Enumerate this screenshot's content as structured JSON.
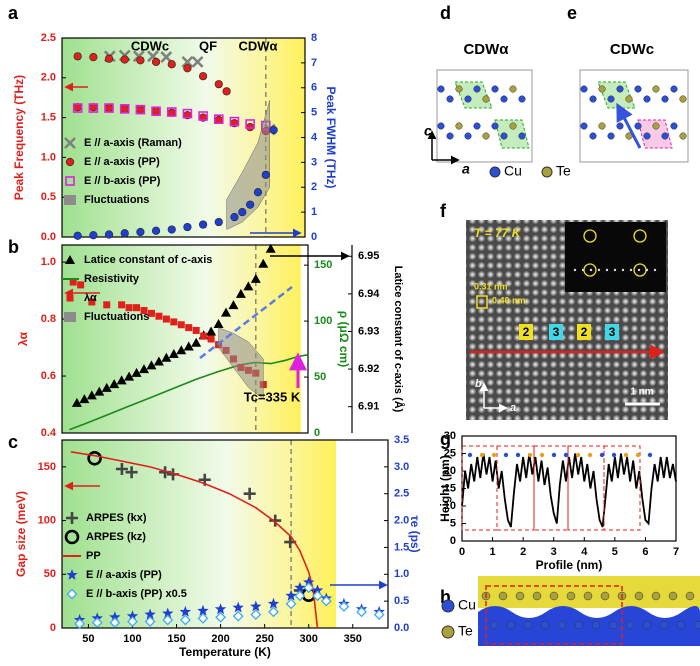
{
  "chart_data": [
    {
      "type": "scatter",
      "annotations": [
        "CDWc",
        "QF",
        "CDWα"
      ],
      "y_label": "Peak Frequency (THz)",
      "y2_label": "Peak FWHM (THz)",
      "xlim": [
        20,
        330
      ],
      "vline": 280,
      "legend": "lower left",
      "ylim": [
        0,
        2.5
      ],
      "yticks": [
        {
          "value": 0,
          "label": "0.0"
        },
        0.5,
        {
          "value": 1,
          "label": "1.0"
        },
        1.5,
        {
          "value": 2,
          "label": "2.0"
        },
        2.5
      ],
      "y2lim": [
        0,
        8
      ],
      "y2ticks": [
        0,
        1,
        2,
        3,
        4,
        5,
        6,
        7,
        8
      ],
      "y_color": "#e0201b",
      "y2_color": "#1f3fd0",
      "series": [
        {
          "name": "E // a-axis (Raman)",
          "color": "#808080",
          "style": "marker",
          "marker": "x",
          "x": [
            81,
            100,
            118,
            136,
            153,
            180,
            193,
            285
          ],
          "values": [
            2.27,
            2.28,
            2.27,
            2.27,
            2.26,
            2.2,
            2.2,
            1.35
          ]
        },
        {
          "name": "E // a-axis (PP)",
          "color": "#e0201b",
          "style": "marker",
          "marker": "circle",
          "x": [
            40,
            60,
            80,
            100,
            120,
            140,
            160,
            180,
            200,
            220,
            230,
            40,
            60,
            80,
            100,
            120,
            140,
            160,
            180,
            200,
            220,
            240,
            260,
            280
          ],
          "values": [
            2.27,
            2.26,
            2.24,
            2.23,
            2.22,
            2.2,
            2.17,
            2.12,
            2.02,
            1.92,
            1.83,
            1.63,
            1.63,
            1.62,
            1.61,
            1.6,
            1.58,
            1.56,
            1.53,
            1.5,
            1.47,
            1.43,
            1.38,
            1.33
          ]
        },
        {
          "name": "E // b-axis (PP)",
          "color": "#e020e0",
          "style": "marker",
          "marker": "square-open",
          "x": [
            40,
            60,
            80,
            100,
            120,
            140,
            160,
            180,
            200,
            220,
            240,
            260,
            280
          ],
          "values": [
            1.62,
            1.62,
            1.62,
            1.61,
            1.6,
            1.58,
            1.57,
            1.55,
            1.52,
            1.48,
            1.45,
            1.42,
            1.4
          ]
        },
        {
          "name": "Fluctuations",
          "color": "#8c8c8c",
          "style": "band",
          "axis": "y2",
          "x": [
            230,
            250,
            270,
            285
          ],
          "values": [
            1.5,
            2.6,
            3.8,
            5.5
          ],
          "lower": [
            0.3,
            0.6,
            1.2,
            2.0
          ]
        },
        {
          "color": "#1f3fd0",
          "style": "marker",
          "marker": "circle",
          "axis": "y2",
          "x": [
            40,
            60,
            80,
            100,
            120,
            140,
            160,
            180,
            200,
            220,
            240,
            250,
            260,
            270,
            280,
            290
          ],
          "values": [
            0.05,
            0.07,
            0.1,
            0.15,
            0.2,
            0.25,
            0.3,
            0.4,
            0.5,
            0.6,
            0.8,
            1.0,
            1.3,
            1.8,
            2.5,
            4.3
          ]
        }
      ]
    },
    {
      "type": "scatter",
      "annotations": [
        "Tc=335 K"
      ],
      "y_label": "λα",
      "y2_label": "ρ (μΩ cm)",
      "y3_label": "Latice constant of c-axis (Å)",
      "xlim": [
        20,
        350
      ],
      "vline": 280,
      "legend": "upper left",
      "ylim": [
        0.4,
        1.06
      ],
      "yticks": [
        0.4,
        0.6,
        0.8,
        {
          "value": 1,
          "label": "1.0"
        }
      ],
      "y2lim": [
        0,
        168
      ],
      "y2ticks": [
        0,
        50,
        100,
        150
      ],
      "y3lim": [
        6.903,
        6.953
      ],
      "y3ticks": [
        6.91,
        6.92,
        6.93,
        6.94,
        6.95
      ],
      "y_color": "#e0201b",
      "y2_color": "#1a8a1a",
      "y3_color": "#000000",
      "series": [
        {
          "name": "Latice constant of c-axis",
          "color": "#000000",
          "style": "marker",
          "marker": "triangle",
          "axis": "y3",
          "x": [
            40,
            50,
            60,
            70,
            80,
            90,
            100,
            110,
            120,
            130,
            140,
            150,
            160,
            170,
            180,
            190,
            200,
            210,
            220,
            230,
            240,
            250,
            260,
            270,
            280,
            290,
            300
          ],
          "values": [
            6.911,
            6.912,
            6.913,
            6.914,
            6.915,
            6.916,
            6.917,
            6.918,
            6.919,
            6.92,
            6.921,
            6.922,
            6.923,
            6.924,
            6.925,
            6.926,
            6.927,
            6.929,
            6.93,
            6.932,
            6.935,
            6.937,
            6.94,
            6.942,
            6.944,
            6.948,
            6.952
          ]
        },
        {
          "name": "Resistivity",
          "color": "#1a8a1a",
          "style": "line",
          "axis": "y2",
          "x": [
            30,
            50,
            80,
            110,
            140,
            170,
            200,
            230,
            260,
            280,
            300,
            320,
            335,
            350
          ],
          "values": [
            3,
            8,
            16,
            24,
            32,
            40,
            48,
            55,
            61,
            63,
            62,
            65,
            68,
            70
          ]
        },
        {
          "name": "λα",
          "color": "#e0201b",
          "style": "marker",
          "marker": "square",
          "x": [
            35,
            45,
            60,
            80,
            100,
            110,
            120,
            130,
            140,
            150,
            160,
            170,
            180,
            190,
            200,
            210,
            220,
            230,
            240,
            250,
            260,
            270,
            280,
            290
          ],
          "values": [
            0.93,
            0.92,
            0.86,
            0.85,
            0.85,
            0.84,
            0.84,
            0.83,
            0.82,
            0.81,
            0.8,
            0.79,
            0.78,
            0.77,
            0.76,
            0.74,
            0.73,
            0.71,
            0.69,
            0.66,
            0.63,
            0.62,
            0.61,
            0.57
          ]
        },
        {
          "name": "Fluctuations",
          "color": "#8c8c8c",
          "style": "band",
          "x": [
            230,
            250,
            270,
            290
          ],
          "values": [
            0.77,
            0.75,
            0.72,
            0.66
          ],
          "lower": [
            0.7,
            0.63,
            0.56,
            0.52
          ]
        }
      ]
    },
    {
      "type": "scatter",
      "x_label": "Temperature (K)",
      "y_label": "Gap size (meV)",
      "y2_label": "τe (ps)",
      "xlim": [
        20,
        390
      ],
      "xticks": [
        50,
        100,
        150,
        200,
        250,
        300,
        350
      ],
      "vline": 280,
      "legend": "lower left",
      "ylim": [
        0,
        175
      ],
      "yticks": [
        0,
        50,
        100,
        150
      ],
      "y2lim": [
        0,
        3.5
      ],
      "y2ticks": [
        {
          "value": 0,
          "label": "0.0"
        },
        0.5,
        {
          "value": 1,
          "label": "1.0"
        },
        1.5,
        {
          "value": 2,
          "label": "2.0"
        },
        2.5,
        {
          "value": 3,
          "label": "3.0"
        },
        3.5
      ],
      "y_color": "#e0201b",
      "y2_color": "#1f3fd0",
      "series": [
        {
          "name": "ARPES (kx)",
          "color": "#444444",
          "style": "marker",
          "marker": "plus",
          "x": [
            88,
            99,
            137,
            146,
            182,
            233,
            262,
            279,
            290
          ],
          "values": [
            148,
            145,
            145,
            143,
            138,
            125,
            100,
            80,
            35
          ]
        },
        {
          "name": "ARPES (kz)",
          "color": "#000000",
          "style": "marker",
          "marker": "ring",
          "x": [
            57,
            300
          ],
          "values": [
            158,
            31
          ]
        },
        {
          "name": "PP",
          "color": "#e0201b",
          "style": "line",
          "x": [
            30,
            60,
            90,
            120,
            150,
            180,
            210,
            240,
            260,
            280,
            290,
            300,
            305,
            310
          ],
          "values": [
            164,
            160,
            155,
            150,
            143,
            135,
            125,
            112,
            100,
            85,
            72,
            52,
            36,
            0
          ]
        },
        {
          "name": "E // a-axis (PP)",
          "color": "#1f3fd0",
          "style": "marker",
          "marker": "star",
          "axis": "y2",
          "x": [
            40,
            60,
            80,
            100,
            120,
            140,
            160,
            180,
            200,
            220,
            240,
            260,
            280,
            290,
            300,
            310,
            320,
            340,
            360,
            380
          ],
          "values": [
            0.15,
            0.18,
            0.2,
            0.22,
            0.25,
            0.27,
            0.3,
            0.32,
            0.35,
            0.38,
            0.4,
            0.45,
            0.6,
            0.75,
            0.85,
            0.7,
            0.55,
            0.45,
            0.35,
            0.3
          ]
        },
        {
          "name": "E // b-axis (PP) x0.5",
          "color": "#3fa9f5",
          "style": "marker",
          "marker": "diamond-open",
          "axis": "y2",
          "x": [
            40,
            60,
            80,
            100,
            120,
            140,
            160,
            180,
            200,
            220,
            240,
            260,
            280,
            290,
            300,
            310,
            320,
            340,
            360,
            380
          ],
          "values": [
            0.08,
            0.1,
            0.1,
            0.12,
            0.12,
            0.15,
            0.15,
            0.18,
            0.2,
            0.22,
            0.25,
            0.3,
            0.45,
            0.6,
            0.75,
            0.6,
            0.5,
            0.4,
            0.3,
            0.25
          ]
        }
      ]
    },
    {
      "type": "line",
      "x_label": "Profile (nm)",
      "y_label": "Height (pm)",
      "xlim": [
        0,
        7
      ],
      "xticks": [
        0,
        1,
        2,
        3,
        4,
        5,
        6,
        7
      ],
      "ylim": [
        0,
        30
      ],
      "yticks": [
        0,
        5,
        10,
        15,
        20,
        25,
        30
      ],
      "y_color": "#000000",
      "series": [
        {
          "color": "#000000",
          "style": "line",
          "x": [
            0,
            0.1,
            0.2,
            0.3,
            0.4,
            0.5,
            0.6,
            0.7,
            0.8,
            0.9,
            1,
            1.1,
            1.2,
            1.3,
            1.4,
            1.5,
            1.6,
            1.7,
            1.8,
            1.9,
            2,
            2.1,
            2.2,
            2.3,
            2.4,
            2.5,
            2.6,
            2.7,
            2.8,
            2.9,
            3,
            3.1,
            3.2,
            3.3,
            3.4,
            3.5,
            3.6,
            3.7,
            3.8,
            3.9,
            4,
            4.1,
            4.2,
            4.3,
            4.4,
            4.5,
            4.6,
            4.7,
            4.8,
            4.9,
            5,
            5.1,
            5.2,
            5.3,
            5.4,
            5.5,
            5.6,
            5.7,
            5.8,
            5.9,
            6,
            6.1,
            6.2,
            6.3,
            6.4,
            6.5,
            6.6,
            6.7,
            6.8,
            6.9,
            7
          ],
          "values": [
            10,
            20,
            15,
            22,
            17,
            24,
            18,
            25,
            19,
            24,
            17,
            23,
            15,
            20,
            12,
            6,
            4,
            14,
            22,
            17,
            24,
            18,
            25,
            19,
            24,
            17,
            23,
            16,
            21,
            13,
            8,
            5,
            16,
            23,
            17,
            24,
            18,
            25,
            19,
            24,
            17,
            22,
            15,
            20,
            12,
            6,
            4,
            13,
            22,
            17,
            24,
            18,
            25,
            19,
            24,
            17,
            23,
            15,
            20,
            12,
            6,
            5,
            15,
            22,
            17,
            24,
            18,
            24,
            18,
            22,
            17
          ]
        }
      ]
    }
  ],
  "panel_labels": [
    "a",
    "b",
    "c",
    "d",
    "e",
    "f",
    "g",
    "h"
  ],
  "structure": {
    "d_title": "CDWα",
    "e_title": "CDWc",
    "axis_c": "c",
    "axis_a": "a",
    "legend": [
      "Cu",
      "Te"
    ]
  },
  "stm": {
    "temperature": "T = 77 K",
    "spacing_b": "0.31 nm",
    "spacing_a": "0.40 nm",
    "periods": [
      "2",
      "3",
      "2",
      "3"
    ],
    "axis_b": "b",
    "axis_a": "a",
    "scale_bar": "1 nm"
  },
  "charge_density": {
    "legend": [
      "Cu",
      "Te"
    ]
  }
}
